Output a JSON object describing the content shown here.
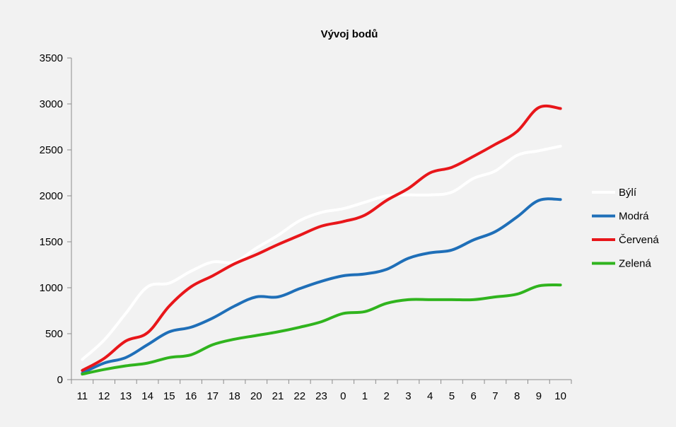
{
  "chart_data": {
    "type": "line",
    "title": "Vývoj bodů",
    "xlabel": "",
    "ylabel": "",
    "ylim": [
      0,
      3500
    ],
    "yticks": [
      0,
      500,
      1000,
      1500,
      2000,
      2500,
      3000,
      3500
    ],
    "grid": false,
    "legend_position": "right",
    "categories": [
      "11",
      "12",
      "13",
      "14",
      "15",
      "16",
      "17",
      "18",
      "20",
      "21",
      "22",
      "23",
      "0",
      "1",
      "2",
      "3",
      "4",
      "5",
      "6",
      "7",
      "8",
      "9",
      "10"
    ],
    "series": [
      {
        "name": "Býlí",
        "color": "#ffffff",
        "values": [
          220,
          430,
          720,
          1010,
          1050,
          1180,
          1280,
          1280,
          1430,
          1570,
          1730,
          1820,
          1860,
          1930,
          2000,
          2010,
          2010,
          2040,
          2190,
          2270,
          2440,
          2490,
          2540
        ]
      },
      {
        "name": "Modrá",
        "color": "#1f6fb8",
        "values": [
          70,
          180,
          240,
          380,
          520,
          570,
          670,
          800,
          900,
          900,
          990,
          1070,
          1130,
          1150,
          1200,
          1320,
          1380,
          1410,
          1520,
          1610,
          1770,
          1950,
          1960
        ]
      },
      {
        "name": "Červená",
        "color": "#e8161a",
        "values": [
          100,
          230,
          420,
          510,
          800,
          1010,
          1130,
          1260,
          1360,
          1470,
          1570,
          1670,
          1720,
          1790,
          1950,
          2080,
          2250,
          2310,
          2430,
          2560,
          2700,
          2960,
          2950
        ]
      },
      {
        "name": "Zelená",
        "color": "#30b41e",
        "values": [
          60,
          110,
          150,
          180,
          240,
          270,
          380,
          440,
          480,
          520,
          570,
          630,
          720,
          740,
          830,
          870,
          870,
          870,
          870,
          900,
          930,
          1020,
          1030
        ]
      }
    ]
  }
}
